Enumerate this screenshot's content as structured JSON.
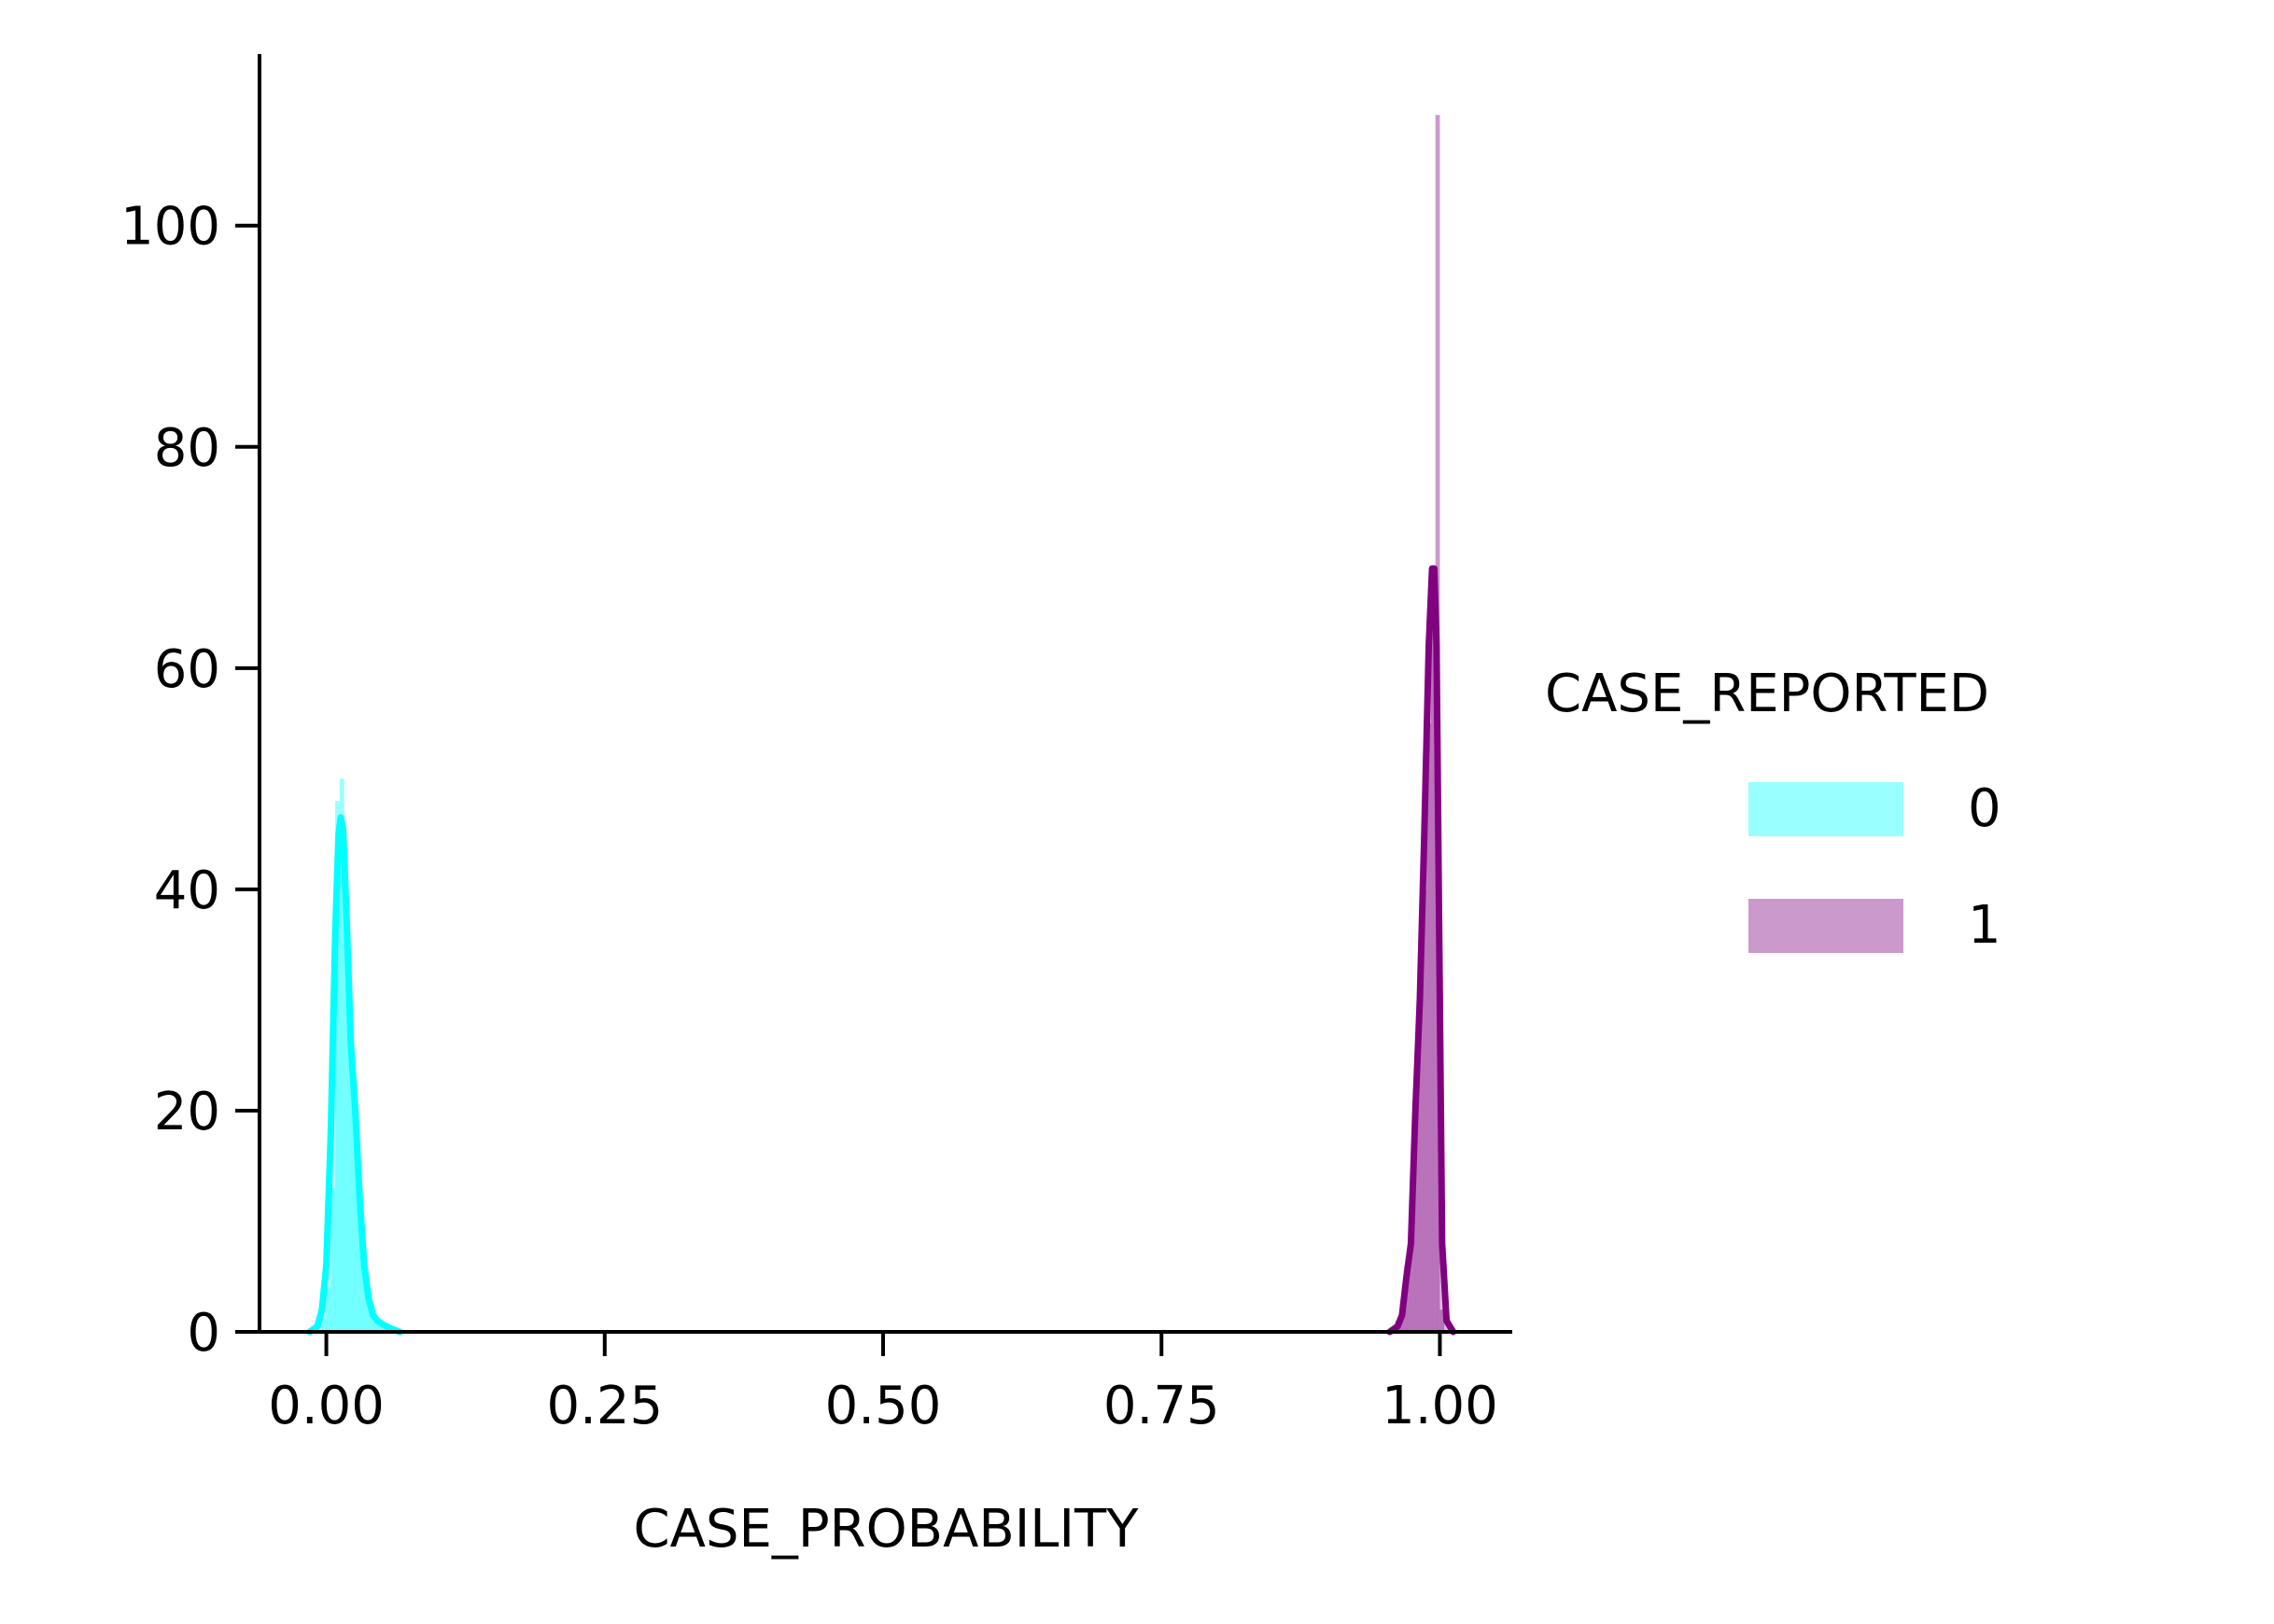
{
  "chart_data": {
    "type": "area",
    "title": "",
    "xlabel": "CASE_PROBABILITY",
    "ylabel": "",
    "xlim": [
      -0.06,
      1.065
    ],
    "ylim": [
      0,
      115.5
    ],
    "xticks": [
      0.0,
      0.25,
      0.5,
      0.75,
      1.0
    ],
    "xtick_labels": [
      "0.00",
      "0.25",
      "0.50",
      "0.75",
      "1.00"
    ],
    "yticks": [
      0,
      20,
      40,
      60,
      80,
      100
    ],
    "ytick_labels": [
      "0",
      "20",
      "40",
      "60",
      "80",
      "100"
    ],
    "grid": false,
    "legend": {
      "title": "CASE_REPORTED",
      "placement": "right",
      "entries": [
        "0",
        "1"
      ]
    },
    "series": [
      {
        "name": "0",
        "color": "#00ffff",
        "histogram": {
          "bin_width": 0.004,
          "bins": [
            [
              -0.008,
              0.2
            ],
            [
              -0.004,
              1.2
            ],
            [
              0.0,
              4.0
            ],
            [
              0.004,
              13.0
            ],
            [
              0.008,
              48.0
            ],
            [
              0.012,
              50.0
            ],
            [
              0.016,
              35.0
            ],
            [
              0.02,
              26.0
            ],
            [
              0.024,
              20.0
            ],
            [
              0.028,
              12.0
            ],
            [
              0.032,
              6.0
            ],
            [
              0.036,
              3.0
            ],
            [
              0.04,
              1.5
            ],
            [
              0.044,
              1.0
            ],
            [
              0.048,
              0.8
            ],
            [
              0.052,
              0.5
            ],
            [
              0.056,
              0.4
            ],
            [
              0.06,
              0.2
            ],
            [
              0.064,
              0.1
            ]
          ]
        },
        "kde": {
          "x": [
            -0.015,
            -0.008,
            -0.004,
            0.0,
            0.004,
            0.008,
            0.011,
            0.013,
            0.015,
            0.018,
            0.022,
            0.026,
            0.03,
            0.034,
            0.038,
            0.042,
            0.046,
            0.052,
            0.058,
            0.066
          ],
          "y": [
            0,
            0.5,
            2.0,
            6.0,
            18.0,
            36.0,
            45.0,
            46.5,
            45.5,
            38.0,
            26.0,
            20.0,
            12.0,
            6.0,
            3.0,
            1.5,
            1.0,
            0.6,
            0.3,
            0
          ]
        }
      },
      {
        "name": "1",
        "color": "#800080",
        "histogram": {
          "bin_width": 0.004,
          "bins": [
            [
              0.956,
              0.3
            ],
            [
              0.96,
              1.0
            ],
            [
              0.964,
              2.5
            ],
            [
              0.968,
              6.0
            ],
            [
              0.972,
              10.0
            ],
            [
              0.976,
              22.0
            ],
            [
              0.98,
              30.0
            ],
            [
              0.984,
              40.0
            ],
            [
              0.988,
              55.0
            ],
            [
              0.992,
              65.0
            ],
            [
              0.996,
              110.0
            ],
            [
              1.0,
              2.0
            ]
          ]
        },
        "kde": {
          "x": [
            0.955,
            0.962,
            0.966,
            0.97,
            0.974,
            0.978,
            0.982,
            0.986,
            0.99,
            0.993,
            0.995,
            0.997,
            0.999,
            1.002,
            1.006,
            1.012
          ],
          "y": [
            0,
            0.5,
            1.5,
            5.0,
            8.0,
            20.0,
            30.0,
            45.0,
            62.0,
            69.0,
            69.0,
            62.0,
            40.0,
            8.0,
            1.0,
            0
          ]
        }
      }
    ]
  }
}
